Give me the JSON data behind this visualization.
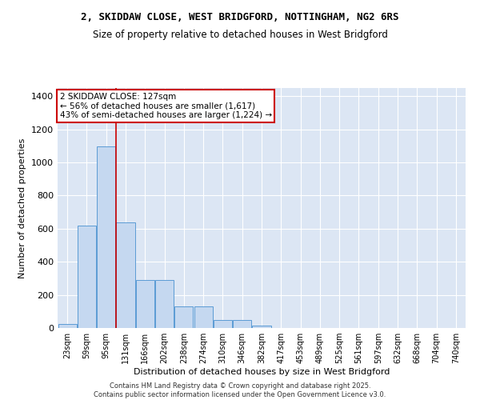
{
  "title_line1": "2, SKIDDAW CLOSE, WEST BRIDGFORD, NOTTINGHAM, NG2 6RS",
  "title_line2": "Size of property relative to detached houses in West Bridgford",
  "xlabel": "Distribution of detached houses by size in West Bridgford",
  "ylabel": "Number of detached properties",
  "categories": [
    "23sqm",
    "59sqm",
    "95sqm",
    "131sqm",
    "166sqm",
    "202sqm",
    "238sqm",
    "274sqm",
    "310sqm",
    "346sqm",
    "382sqm",
    "417sqm",
    "453sqm",
    "489sqm",
    "525sqm",
    "561sqm",
    "597sqm",
    "632sqm",
    "668sqm",
    "704sqm",
    "740sqm"
  ],
  "values": [
    25,
    620,
    1095,
    640,
    290,
    290,
    130,
    130,
    50,
    50,
    15,
    0,
    0,
    0,
    0,
    0,
    0,
    0,
    0,
    0,
    0
  ],
  "bar_color": "#c5d8f0",
  "bar_edge_color": "#5b9bd5",
  "background_color": "#dce6f4",
  "vline_x_index": 3,
  "vline_color": "#cc0000",
  "annotation_text": "2 SKIDDAW CLOSE: 127sqm\n← 56% of detached houses are smaller (1,617)\n43% of semi-detached houses are larger (1,224) →",
  "annotation_box_edgecolor": "#cc0000",
  "ylim": [
    0,
    1450
  ],
  "yticks": [
    0,
    200,
    400,
    600,
    800,
    1000,
    1200,
    1400
  ],
  "footer_line1": "Contains HM Land Registry data © Crown copyright and database right 2025.",
  "footer_line2": "Contains public sector information licensed under the Open Government Licence v3.0."
}
